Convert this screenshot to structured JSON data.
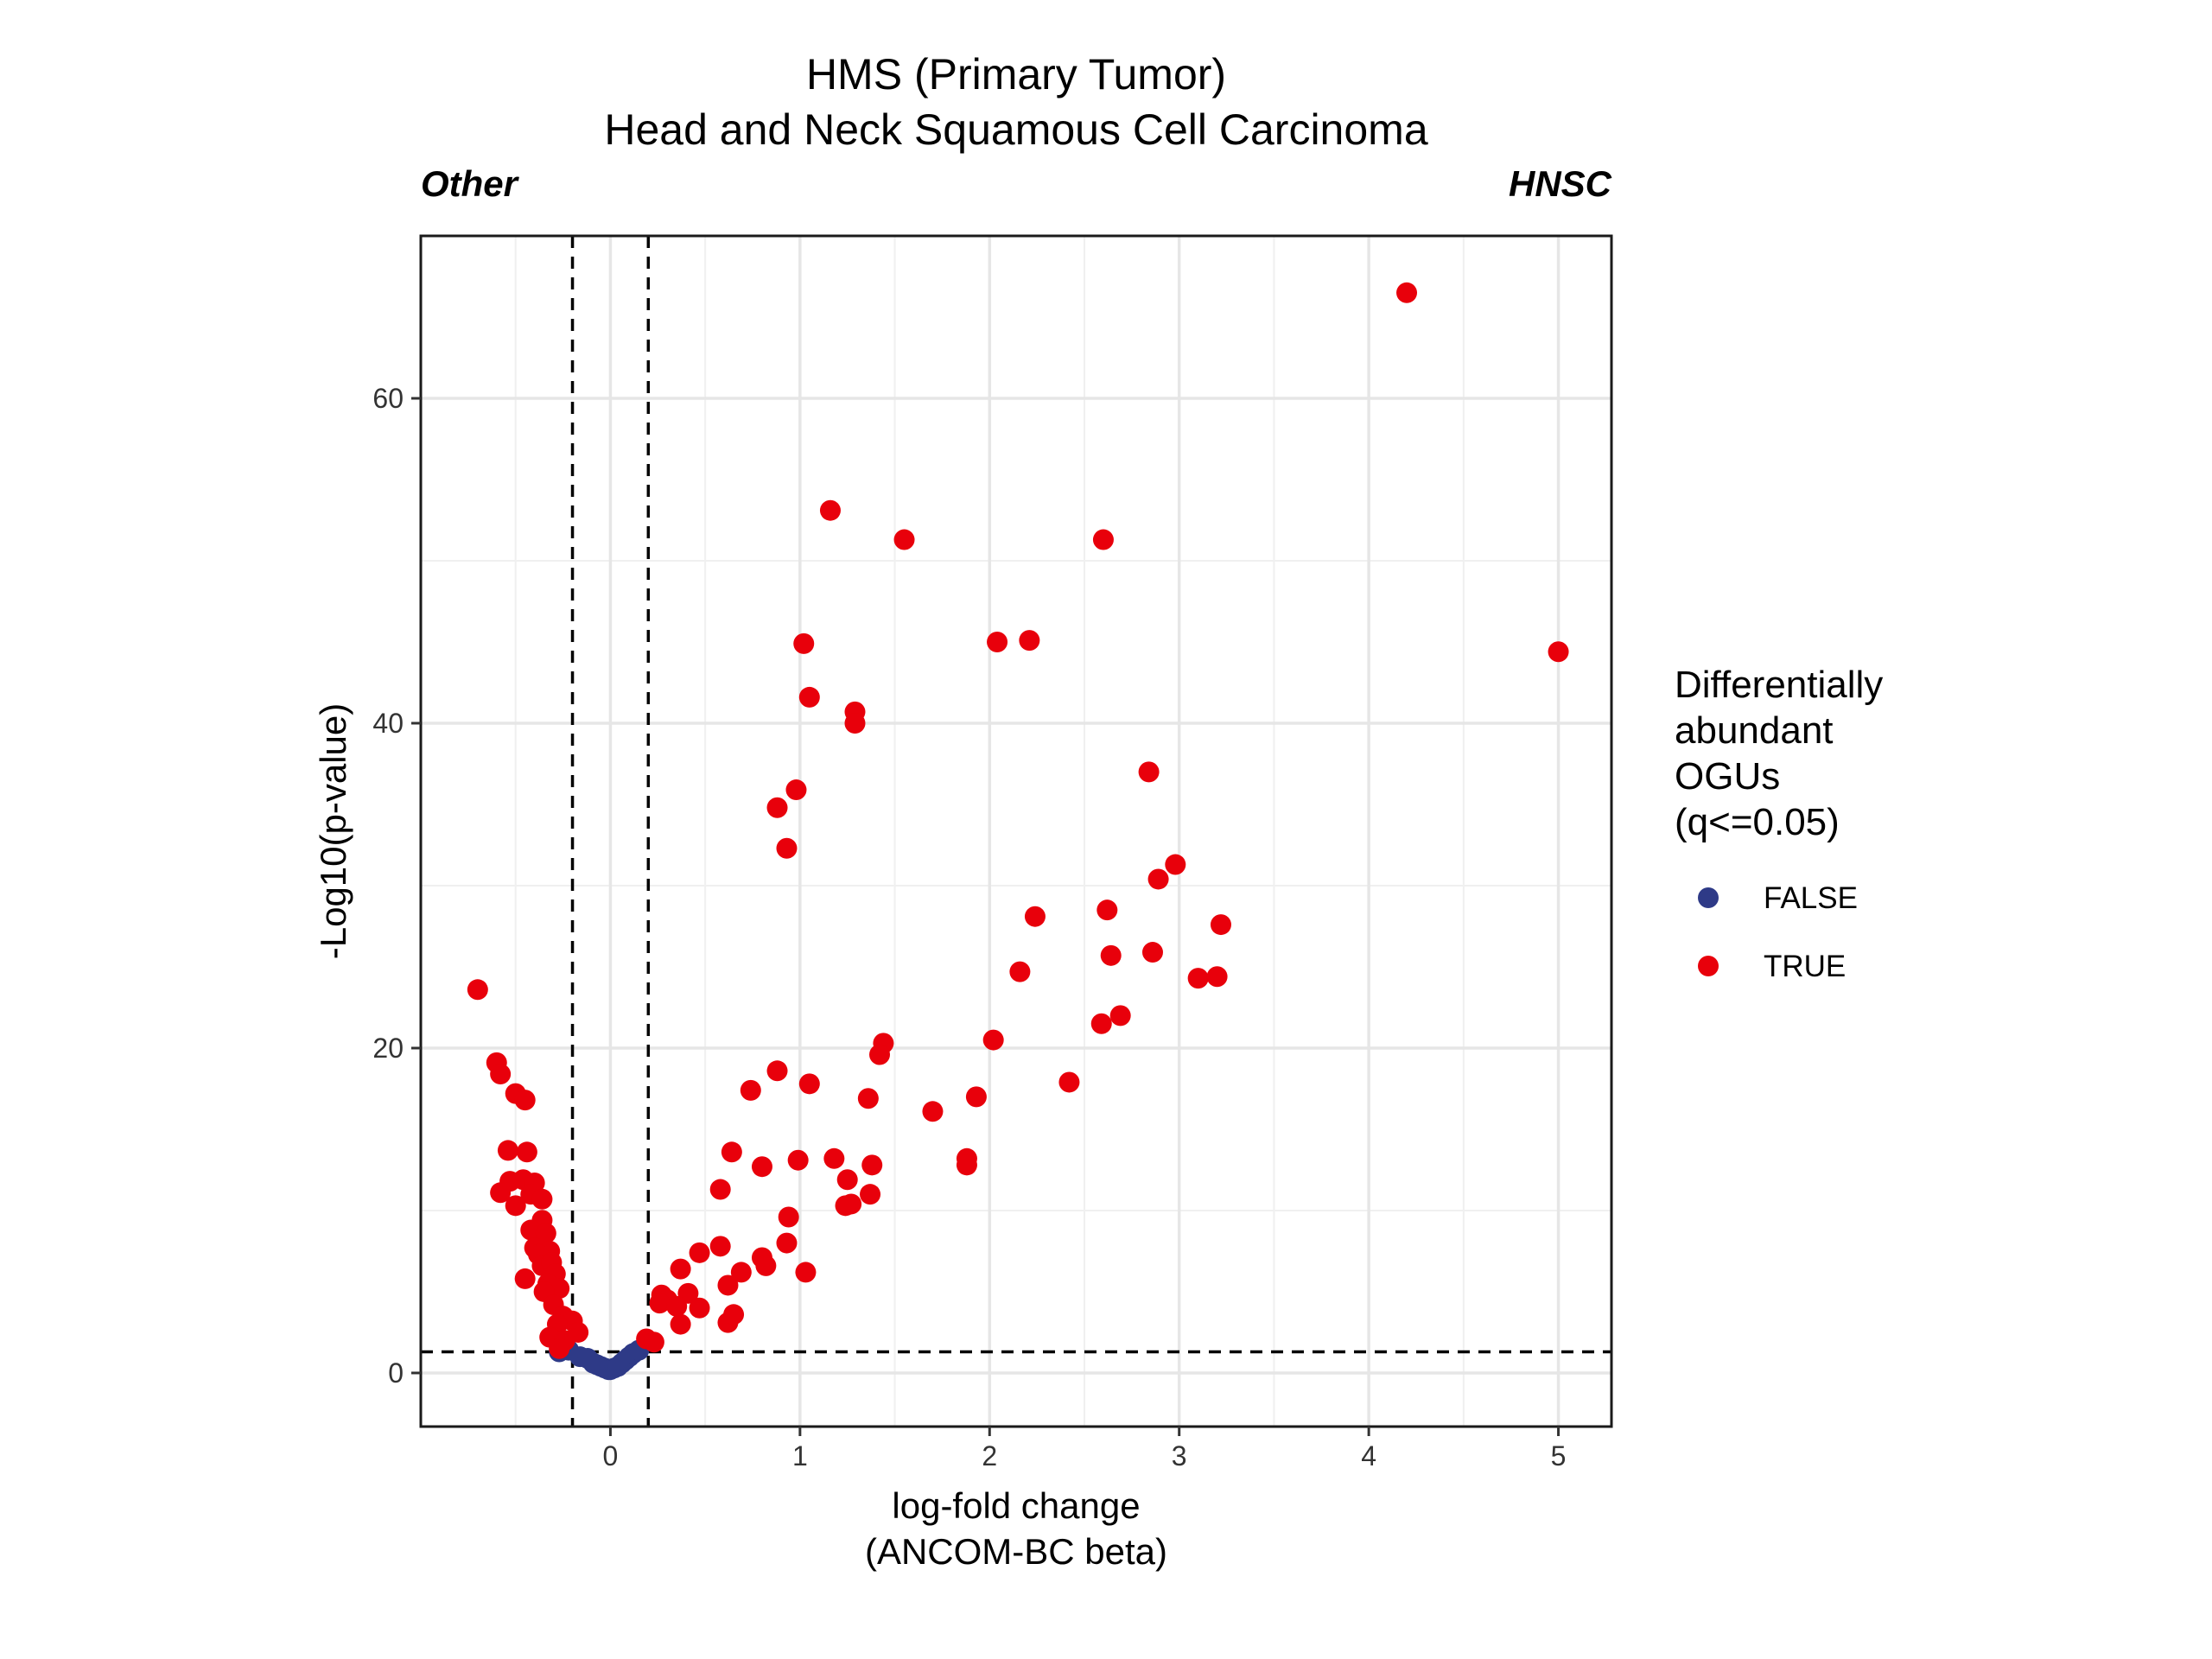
{
  "chart_data": {
    "type": "scatter",
    "title": "HMS (Primary Tumor)",
    "subtitle": "Head and Neck Squamous Cell Carcinoma",
    "left_annotation": "Other",
    "right_annotation": "HNSC",
    "xlabel_line1": "log-fold change",
    "xlabel_line2": "(ANCOM-BC beta)",
    "ylabel": "-Log10(p-value)",
    "xlim": [
      -1.0,
      5.28
    ],
    "ylim": [
      -3.3,
      70
    ],
    "x_ticks": [
      0,
      1,
      2,
      3,
      4,
      5
    ],
    "y_ticks": [
      0,
      20,
      40,
      60
    ],
    "thresholds": {
      "x": [
        -0.2,
        0.2
      ],
      "y": 1.3
    },
    "grid": true,
    "legend": {
      "title_lines": [
        "Differentially",
        "abundant",
        "OGUs",
        "(q<=0.05)"
      ],
      "placement": "right",
      "entries": [
        {
          "label": "FALSE",
          "color": "#2e3a87"
        },
        {
          "label": "TRUE",
          "color": "#e8000b"
        }
      ]
    },
    "series": [
      {
        "name": "FALSE",
        "color": "#2e3a87",
        "points": [
          [
            -0.27,
            1.3
          ],
          [
            -0.22,
            1.4
          ],
          [
            -0.16,
            1.0
          ],
          [
            -0.12,
            0.9
          ],
          [
            -0.09,
            0.6
          ],
          [
            -0.07,
            0.5
          ],
          [
            -0.05,
            0.4
          ],
          [
            -0.03,
            0.3
          ],
          [
            -0.01,
            0.2
          ],
          [
            0.0,
            0.2
          ],
          [
            0.02,
            0.3
          ],
          [
            0.04,
            0.4
          ],
          [
            0.06,
            0.6
          ],
          [
            0.08,
            0.8
          ],
          [
            0.1,
            1.0
          ],
          [
            0.12,
            1.2
          ],
          [
            0.15,
            1.4
          ]
        ]
      },
      {
        "name": "TRUE",
        "color": "#e8000b",
        "points": [
          [
            4.2,
            66.5
          ],
          [
            5.0,
            44.4
          ],
          [
            1.16,
            53.1
          ],
          [
            1.55,
            51.3
          ],
          [
            2.6,
            51.3
          ],
          [
            1.02,
            44.9
          ],
          [
            2.04,
            45.0
          ],
          [
            2.21,
            45.1
          ],
          [
            1.05,
            41.6
          ],
          [
            1.29,
            40.7
          ],
          [
            1.29,
            40.0
          ],
          [
            0.98,
            35.9
          ],
          [
            0.88,
            34.8
          ],
          [
            0.93,
            32.3
          ],
          [
            2.84,
            37.0
          ],
          [
            2.98,
            31.3
          ],
          [
            2.89,
            30.4
          ],
          [
            2.24,
            28.1
          ],
          [
            2.62,
            28.5
          ],
          [
            3.22,
            27.6
          ],
          [
            2.64,
            25.7
          ],
          [
            2.86,
            25.9
          ],
          [
            2.16,
            24.7
          ],
          [
            3.1,
            24.3
          ],
          [
            3.2,
            24.4
          ],
          [
            -0.7,
            23.6
          ],
          [
            2.69,
            22.0
          ],
          [
            2.59,
            21.5
          ],
          [
            2.02,
            20.5
          ],
          [
            1.44,
            20.3
          ],
          [
            1.42,
            19.6
          ],
          [
            -0.6,
            19.1
          ],
          [
            -0.58,
            18.4
          ],
          [
            0.88,
            18.6
          ],
          [
            1.05,
            17.8
          ],
          [
            2.42,
            17.9
          ],
          [
            0.74,
            17.4
          ],
          [
            1.36,
            16.9
          ],
          [
            1.93,
            17.0
          ],
          [
            1.7,
            16.1
          ],
          [
            -0.5,
            17.2
          ],
          [
            -0.45,
            16.8
          ],
          [
            -0.54,
            13.7
          ],
          [
            -0.44,
            13.6
          ],
          [
            0.64,
            13.6
          ],
          [
            0.8,
            12.7
          ],
          [
            0.99,
            13.1
          ],
          [
            1.18,
            13.2
          ],
          [
            1.38,
            12.8
          ],
          [
            1.88,
            13.2
          ],
          [
            1.88,
            12.8
          ],
          [
            -0.53,
            11.8
          ],
          [
            -0.46,
            11.9
          ],
          [
            -0.4,
            11.7
          ],
          [
            -0.58,
            11.1
          ],
          [
            -0.42,
            11.0
          ],
          [
            -0.5,
            10.3
          ],
          [
            -0.36,
            10.7
          ],
          [
            0.58,
            11.3
          ],
          [
            1.25,
            11.9
          ],
          [
            1.37,
            11.0
          ],
          [
            1.27,
            10.4
          ],
          [
            1.24,
            10.3
          ],
          [
            -0.36,
            9.4
          ],
          [
            -0.42,
            8.8
          ],
          [
            -0.34,
            8.6
          ],
          [
            0.94,
            9.6
          ],
          [
            0.93,
            8.0
          ],
          [
            -0.4,
            7.7
          ],
          [
            -0.32,
            7.5
          ],
          [
            -0.38,
            7.3
          ],
          [
            0.58,
            7.8
          ],
          [
            0.47,
            7.4
          ],
          [
            0.8,
            7.1
          ],
          [
            0.82,
            6.6
          ],
          [
            0.69,
            6.2
          ],
          [
            1.03,
            6.2
          ],
          [
            -0.36,
            6.6
          ],
          [
            -0.31,
            6.8
          ],
          [
            -0.29,
            6.1
          ],
          [
            0.37,
            6.4
          ],
          [
            -0.45,
            5.8
          ],
          [
            -0.33,
            5.5
          ],
          [
            -0.27,
            5.2
          ],
          [
            -0.35,
            5.0
          ],
          [
            0.62,
            5.4
          ],
          [
            0.27,
            4.8
          ],
          [
            0.3,
            4.5
          ],
          [
            0.41,
            4.9
          ],
          [
            0.26,
            4.3
          ],
          [
            0.35,
            4.1
          ],
          [
            0.47,
            4.0
          ],
          [
            -0.3,
            4.2
          ],
          [
            -0.25,
            3.5
          ],
          [
            -0.2,
            3.2
          ],
          [
            -0.28,
            3.0
          ],
          [
            0.37,
            3.0
          ],
          [
            0.62,
            3.1
          ],
          [
            0.65,
            3.6
          ],
          [
            -0.32,
            2.2
          ],
          [
            -0.24,
            2.0
          ],
          [
            -0.17,
            2.5
          ],
          [
            -0.27,
            1.5
          ],
          [
            0.19,
            2.1
          ],
          [
            0.23,
            1.9
          ]
        ]
      }
    ]
  }
}
